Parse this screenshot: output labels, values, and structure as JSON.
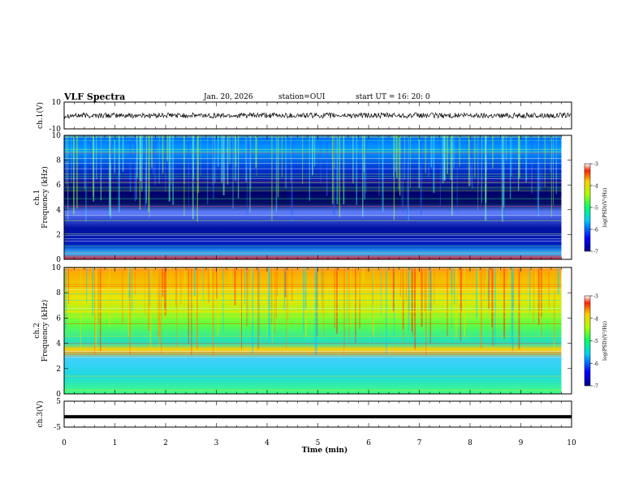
{
  "header": {
    "title": "VLF Spectra",
    "date": "Jan. 20, 2026",
    "station": "station=OUI",
    "start": "start  UT =   16: 20: 0"
  },
  "chart_data": [
    {
      "type": "line",
      "name": "ch1-waveform",
      "ylabel": "ch.1(V)",
      "ylim": [
        -10,
        10
      ],
      "yticks": [
        "10",
        "-10"
      ],
      "xlim": [
        0,
        10
      ],
      "values_description": "noise band around 0 V, approx -2 to 2 V"
    },
    {
      "type": "heatmap",
      "name": "ch1-spectrogram",
      "ylabel": "ch.1",
      "ylabel2": "Frequency  (kHz)",
      "ylim": [
        0,
        10
      ],
      "yticks": [
        "0",
        "2",
        "4",
        "6",
        "8",
        "10"
      ],
      "xlim": [
        0,
        9.8
      ],
      "colorbar": {
        "label": "log(PSD)(V²/Hz)",
        "range": [
          -7,
          -3
        ],
        "ticks": [
          "-3",
          "-4",
          "-5",
          "-6",
          "-7"
        ]
      }
    },
    {
      "type": "heatmap",
      "name": "ch2-spectrogram",
      "ylabel": "ch.2",
      "ylabel2": "Frequency  (kHz)",
      "ylim": [
        0,
        10
      ],
      "yticks": [
        "0",
        "2",
        "4",
        "6",
        "8",
        "10"
      ],
      "xlim": [
        0,
        9.8
      ],
      "colorbar": {
        "label": "log(PSD)(V²/Hz)",
        "range": [
          -7,
          -3
        ],
        "ticks": [
          "-3",
          "-4",
          "-5",
          "-6",
          "-7"
        ]
      }
    },
    {
      "type": "line",
      "name": "ch3-waveform",
      "ylabel": "ch.3(V)",
      "ylim": [
        -5,
        5
      ],
      "yticks": [
        "5",
        "-5"
      ],
      "xlim": [
        0,
        10
      ],
      "values_description": "flat near -1 V"
    }
  ],
  "xaxis": {
    "label": "Time  (min)",
    "ticks": [
      "0",
      "1",
      "2",
      "3",
      "4",
      "5",
      "6",
      "7",
      "8",
      "9",
      "10"
    ]
  }
}
